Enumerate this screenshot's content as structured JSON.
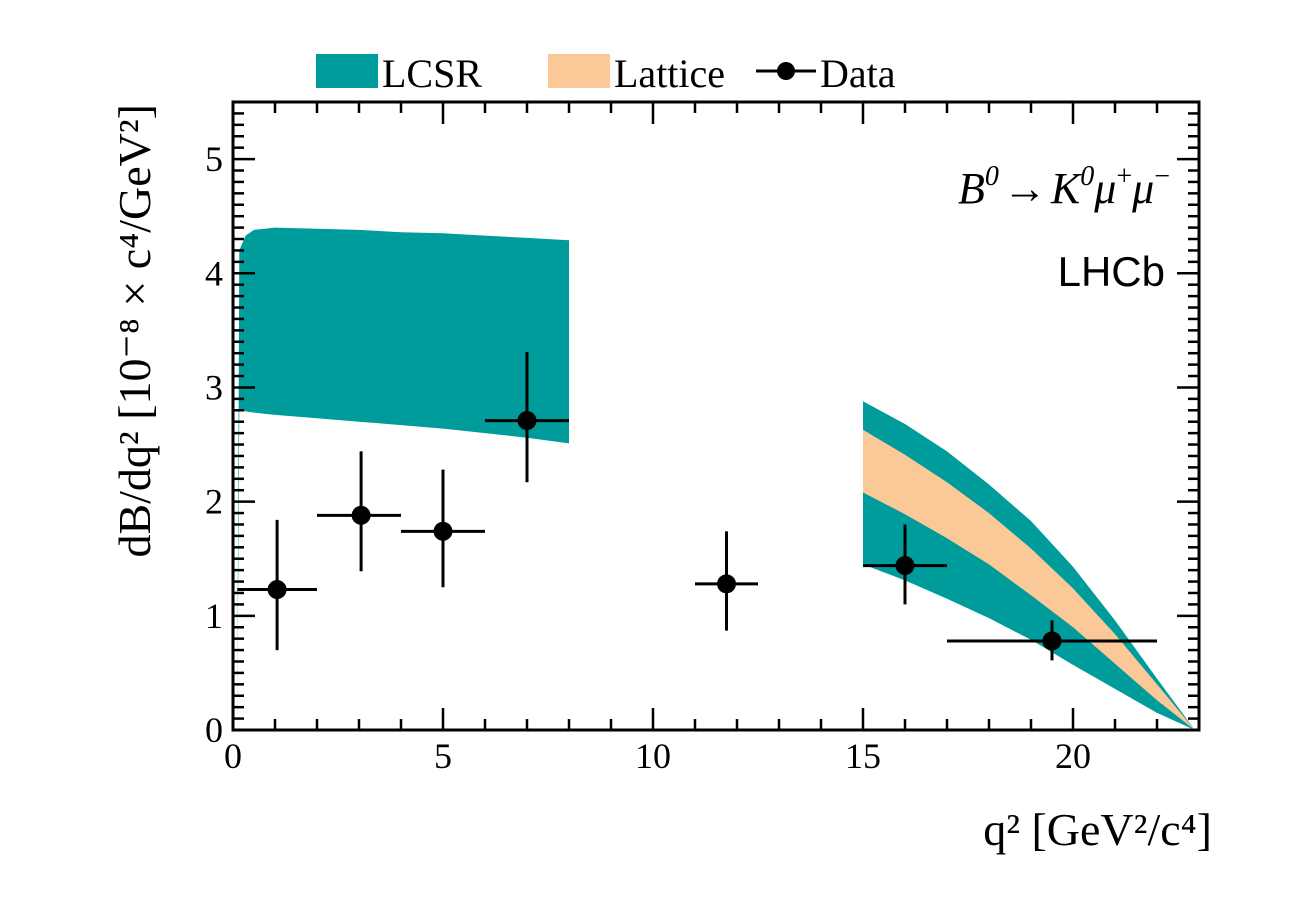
{
  "chart_data": {
    "type": "scatter",
    "title": "",
    "xlabel": "q² [GeV²/c⁴]",
    "ylabel": "dB/dq² [10⁻⁸ × c⁴/GeV²]",
    "xlim": [
      0,
      23
    ],
    "ylim": [
      0,
      5.5
    ],
    "x_ticks": [
      0,
      5,
      10,
      15,
      20
    ],
    "y_ticks": [
      0,
      1,
      2,
      3,
      4,
      5
    ],
    "grid": false,
    "legend": {
      "position": "top",
      "entries": [
        {
          "label": "LCSR",
          "kind": "band",
          "color": "#009b9b"
        },
        {
          "label": "Lattice",
          "kind": "band",
          "color": "#fbc898"
        },
        {
          "label": "Data",
          "kind": "errorbar",
          "color": "#000000"
        }
      ]
    },
    "annotations": {
      "decay": {
        "B": "B",
        "B_sup": "0",
        "arrow": "→",
        "K": "K",
        "K_sup": "0",
        "mu1": "μ",
        "mu1_sup": "+",
        "mu2": "μ",
        "mu2_sup": "−"
      },
      "experiment": "LHCb"
    },
    "series": [
      {
        "name": "LCSR",
        "kind": "band",
        "color": "#009b9b",
        "x": [
          0.1,
          0.15,
          0.3,
          0.5,
          1.0,
          2.0,
          3.0,
          4.0,
          5.0,
          6.0,
          7.0,
          8.0
        ],
        "low": [
          0.0,
          2.8,
          2.79,
          2.78,
          2.76,
          2.73,
          2.7,
          2.67,
          2.64,
          2.6,
          2.56,
          2.51
        ],
        "high": [
          0.0,
          4.2,
          4.33,
          4.38,
          4.4,
          4.39,
          4.38,
          4.36,
          4.35,
          4.33,
          4.31,
          4.29
        ]
      },
      {
        "name": "LCSR",
        "kind": "band",
        "color": "#009b9b",
        "x": [
          15.0,
          16.0,
          17.0,
          18.0,
          19.0,
          20.0,
          21.0,
          22.0,
          22.9
        ],
        "low": [
          1.45,
          1.31,
          1.15,
          0.98,
          0.79,
          0.57,
          0.36,
          0.15,
          0.0
        ],
        "high": [
          2.88,
          2.68,
          2.44,
          2.15,
          1.83,
          1.43,
          0.96,
          0.45,
          0.0
        ]
      },
      {
        "name": "Lattice",
        "kind": "band",
        "color": "#fbc898",
        "x": [
          15.0,
          16.0,
          17.0,
          18.0,
          19.0,
          20.0,
          21.0,
          22.0,
          22.9
        ],
        "low": [
          2.08,
          1.89,
          1.68,
          1.45,
          1.18,
          0.9,
          0.58,
          0.26,
          0.0
        ],
        "high": [
          2.63,
          2.41,
          2.17,
          1.9,
          1.59,
          1.24,
          0.84,
          0.4,
          0.0
        ]
      },
      {
        "name": "Data",
        "kind": "errorbar",
        "color": "#000000",
        "points": [
          {
            "x": 1.05,
            "xlo": 0.1,
            "xhi": 2.0,
            "y": 1.23,
            "ylo": 0.7,
            "yhi": 1.84
          },
          {
            "x": 3.05,
            "xlo": 2.0,
            "xhi": 4.0,
            "y": 1.88,
            "ylo": 1.39,
            "yhi": 2.44
          },
          {
            "x": 5.0,
            "xlo": 4.0,
            "xhi": 6.0,
            "y": 1.74,
            "ylo": 1.25,
            "yhi": 2.28
          },
          {
            "x": 7.0,
            "xlo": 6.0,
            "xhi": 8.0,
            "y": 2.71,
            "ylo": 2.17,
            "yhi": 3.31
          },
          {
            "x": 11.75,
            "xlo": 11.0,
            "xhi": 12.5,
            "y": 1.28,
            "ylo": 0.87,
            "yhi": 1.74
          },
          {
            "x": 16.0,
            "xlo": 15.0,
            "xhi": 17.0,
            "y": 1.44,
            "ylo": 1.1,
            "yhi": 1.8
          },
          {
            "x": 19.5,
            "xlo": 17.0,
            "xhi": 22.0,
            "y": 0.78,
            "ylo": 0.61,
            "yhi": 0.96
          }
        ]
      }
    ]
  }
}
